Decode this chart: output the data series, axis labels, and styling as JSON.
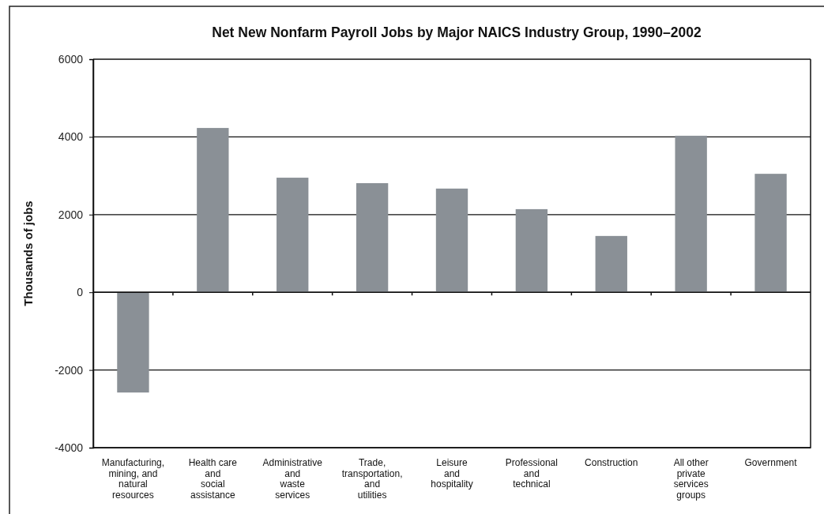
{
  "chart_data": {
    "type": "bar",
    "title": "Net New Nonfarm Payroll Jobs by Major NAICS Industry Group, 1990–2002",
    "ylabel": "Thousands of jobs",
    "categories": [
      "Manufacturing,\nmining, and\nnatural\nresources",
      "Health care\nand\nsocial\nassistance",
      "Administrative\nand\nwaste\nservices",
      "Trade,\ntransportation,\nand\nutilities",
      "Leisure\nand\nhospitality",
      "Professional\nand\ntechnical",
      "Construction",
      "All other\nprivate\nservices\ngroups",
      "Government"
    ],
    "values": [
      -2580,
      4230,
      2950,
      2810,
      2670,
      2140,
      1450,
      4030,
      3050
    ],
    "color": "#8a9096",
    "ylim": [
      -4000,
      6000
    ],
    "yticks": [
      -4000,
      -2000,
      0,
      2000,
      4000,
      6000
    ],
    "grid": "y"
  }
}
